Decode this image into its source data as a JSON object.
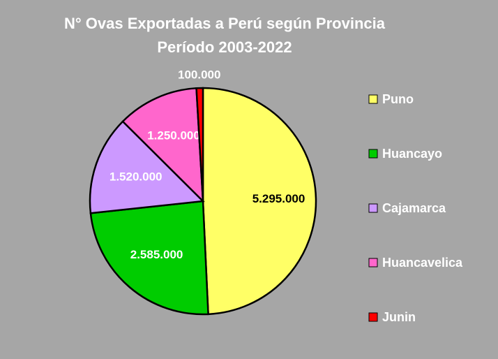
{
  "chart_data": {
    "type": "pie",
    "title": "N° Ovas Exportadas a Perú según Provincia",
    "subtitle": "Período 2003-2022",
    "categories": [
      "Puno",
      "Huancayo",
      "Cajamarca",
      "Huancavelica",
      "Junin"
    ],
    "values": [
      5295000,
      2585000,
      1520000,
      1250000,
      100000
    ],
    "value_labels": [
      "5.295.000",
      "2.585.000",
      "1.520.000",
      "1.250.000",
      "100.000"
    ],
    "colors": [
      "#ffff66",
      "#00cc00",
      "#cc99ff",
      "#ff66cc",
      "#ff0000"
    ],
    "legend": "right"
  }
}
